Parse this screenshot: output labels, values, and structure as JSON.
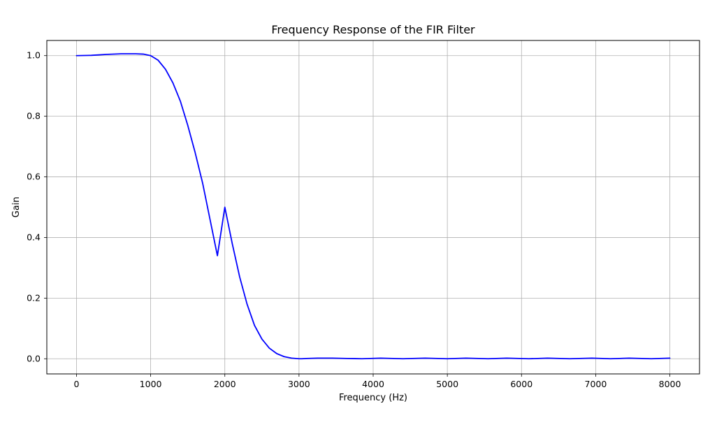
{
  "chart_data": {
    "type": "line",
    "title": "Frequency Response of the FIR Filter",
    "xlabel": "Frequency (Hz)",
    "ylabel": "Gain",
    "xlim": [
      -400,
      8400
    ],
    "ylim": [
      -0.05,
      1.05
    ],
    "xticks": [
      0,
      1000,
      2000,
      3000,
      4000,
      5000,
      6000,
      7000,
      8000
    ],
    "yticks": [
      0.0,
      0.2,
      0.4,
      0.6,
      0.8,
      1.0
    ],
    "xtick_labels": [
      "0",
      "1000",
      "2000",
      "3000",
      "4000",
      "5000",
      "6000",
      "7000",
      "8000"
    ],
    "ytick_labels": [
      "0.0",
      "0.2",
      "0.4",
      "0.6",
      "0.8",
      "1.0"
    ],
    "grid": true,
    "series": [
      {
        "color": "#0000ff",
        "x": [
          0,
          200,
          400,
          600,
          800,
          900,
          1000,
          1100,
          1200,
          1300,
          1400,
          1500,
          1600,
          1700,
          1800,
          1900,
          2000,
          2100,
          2200,
          2300,
          2400,
          2500,
          2600,
          2700,
          2800,
          2900,
          3000,
          3040,
          3100,
          3250,
          3450,
          3650,
          3850,
          4100,
          4400,
          4700,
          5000,
          5250,
          5550,
          5800,
          6100,
          6350,
          6650,
          6950,
          7200,
          7450,
          7750,
          8000
        ],
        "y": [
          1.0,
          1.001,
          1.004,
          1.006,
          1.006,
          1.005,
          1.0,
          0.985,
          0.955,
          0.91,
          0.85,
          0.77,
          0.68,
          0.58,
          0.46,
          0.34,
          0.5,
          0.38,
          0.27,
          0.18,
          0.11,
          0.065,
          0.035,
          0.017,
          0.007,
          0.002,
          0.0,
          0.0,
          0.001,
          0.002,
          0.002,
          0.001,
          0.0,
          0.002,
          0.0,
          0.002,
          0.0,
          0.002,
          0.0,
          0.002,
          0.0,
          0.002,
          0.0,
          0.002,
          0.0,
          0.002,
          0.0,
          0.002
        ]
      }
    ]
  }
}
